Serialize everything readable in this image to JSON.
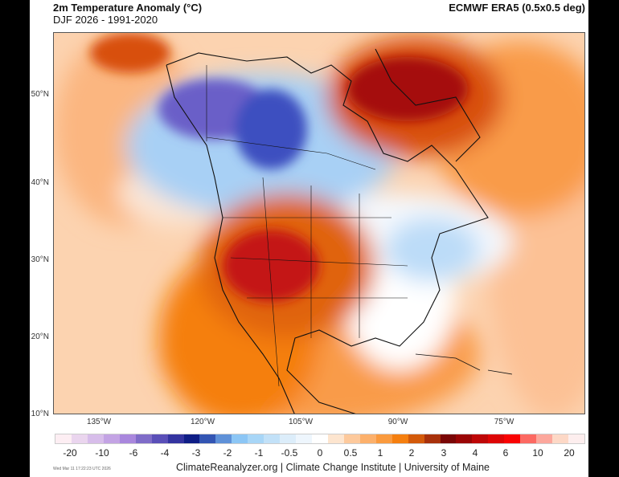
{
  "header": {
    "title": "2m Temperature Anomaly (°C)",
    "subtitle": "DJF 2026 - 1991-2020",
    "source": "ECMWF ERA5 (0.5x0.5 deg)"
  },
  "map": {
    "lat_labels": [
      "50°N",
      "40°N",
      "30°N",
      "20°N",
      "10°N"
    ],
    "lon_labels": [
      "135°W",
      "120°W",
      "105°W",
      "90°W",
      "75°W"
    ],
    "colors": {
      "cold_max": "#4b3fb5",
      "cold": "#7fb6f0",
      "neutral": "#ffffff",
      "warm": "#f98a22",
      "warm_max": "#a50f0f"
    }
  },
  "colorbar": {
    "colors": [
      "#fdeef3",
      "#ead5ee",
      "#d7bdea",
      "#c3a3e4",
      "#a987dd",
      "#7f6cc8",
      "#5a4fb8",
      "#3434a0",
      "#0f1e86",
      "#3355b3",
      "#5f91d8",
      "#8cc6f5",
      "#a8d6f7",
      "#c2e1f8",
      "#dcedfa",
      "#eef6fd",
      "#ffffff",
      "#fde5cf",
      "#fdc99c",
      "#fcb06b",
      "#fa9a3e",
      "#f57f0f",
      "#d35a0a",
      "#a8310b",
      "#7a0606",
      "#9a0505",
      "#be0707",
      "#dd0505",
      "#f90303",
      "#fc6962",
      "#fca79c",
      "#fdd8c6",
      "#fdeeee"
    ],
    "labels": [
      "-20",
      "-10",
      "-6",
      "-4",
      "-3",
      "-2",
      "-1",
      "-0.5",
      "0",
      "0.5",
      "1",
      "2",
      "3",
      "4",
      "6",
      "10",
      "20"
    ]
  },
  "footer": {
    "timestamp": "Wed Mar 11 17:22:23 UTC 2026",
    "credit": "ClimateReanalyzer.org | Climate Change Institute | University of Maine"
  }
}
